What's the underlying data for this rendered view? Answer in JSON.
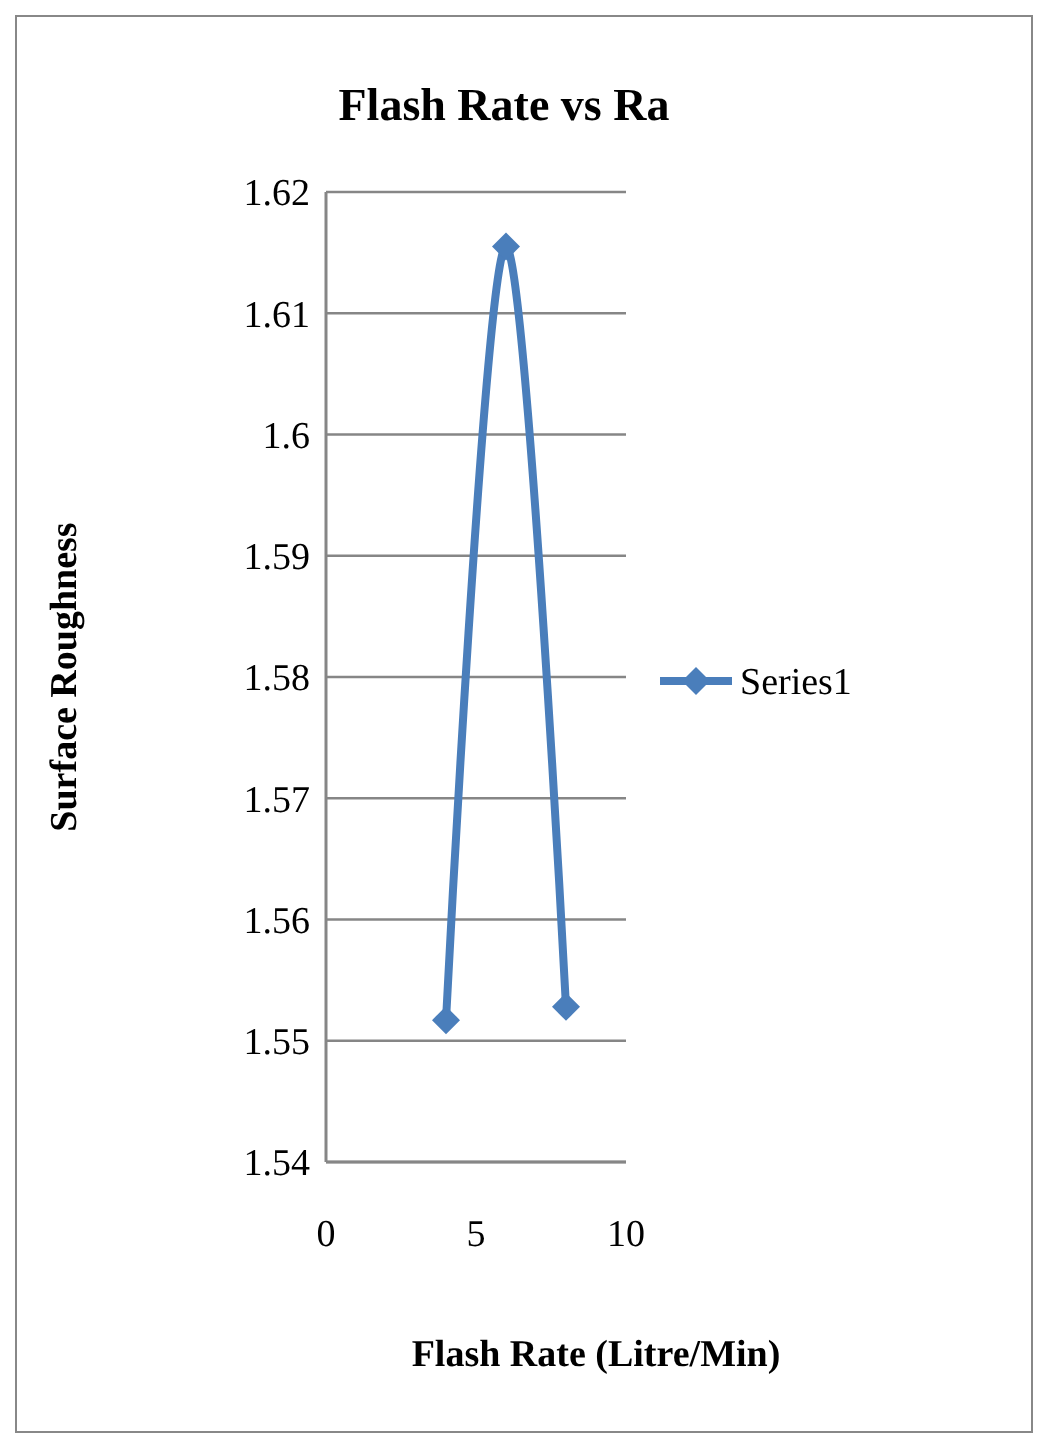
{
  "chart_data": {
    "type": "line",
    "title": "Flash Rate vs Ra",
    "xlabel": "Flash Rate (Litre/Min)",
    "ylabel": "Surface Roughness",
    "x": [
      4,
      6,
      8
    ],
    "series": [
      {
        "name": "Series1",
        "color": "#4a7ebb",
        "values": [
          1.5517,
          1.6155,
          1.5528
        ]
      }
    ],
    "xlim": [
      0,
      10
    ],
    "xticks": [
      0,
      5,
      10
    ],
    "ylim": [
      1.54,
      1.62
    ],
    "yticks": [
      1.54,
      1.55,
      1.56,
      1.57,
      1.58,
      1.59,
      1.6,
      1.61,
      1.62
    ],
    "grid": "y",
    "legend": "right",
    "marker": "diamond",
    "line_style": "solid"
  }
}
